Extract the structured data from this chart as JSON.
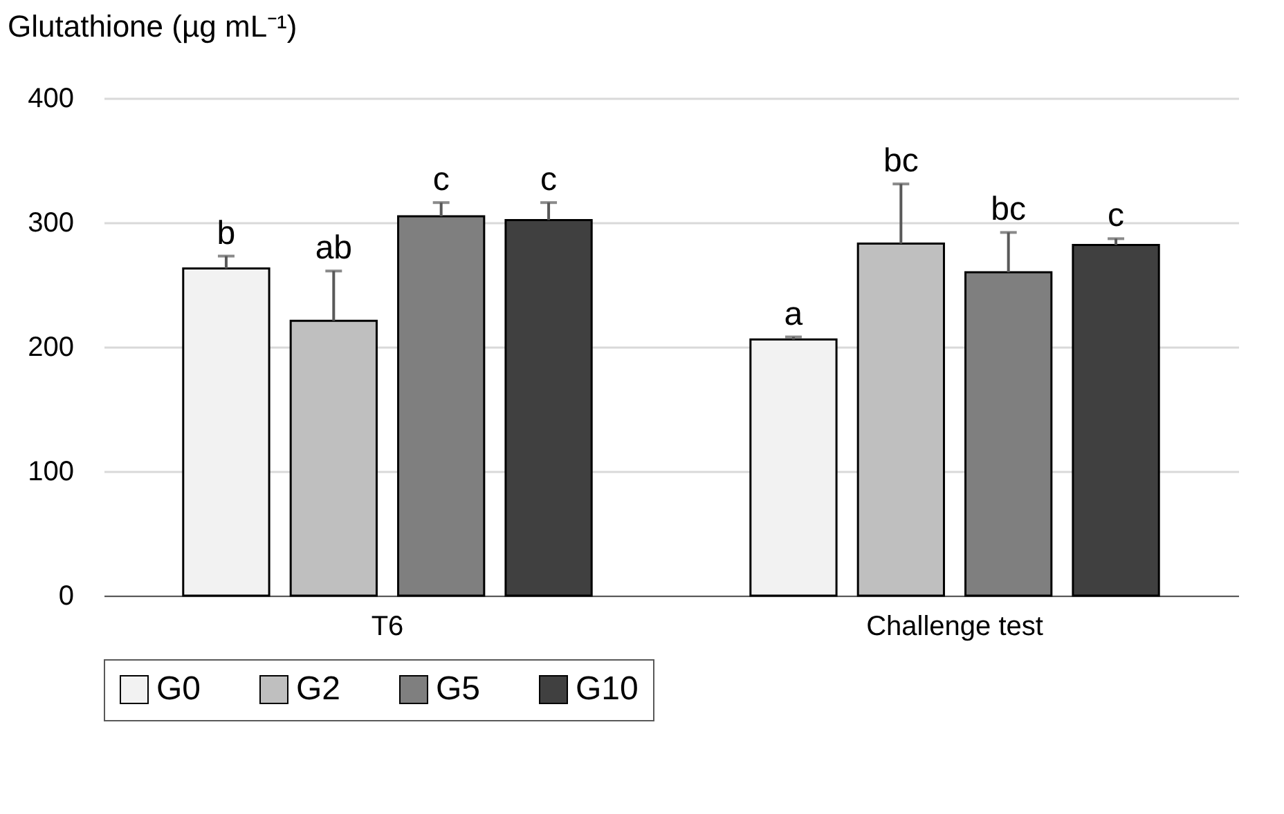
{
  "chart_data": {
    "type": "bar",
    "ylabel": "Glutathione (µg mL⁻¹)",
    "categories": [
      "T6",
      "Challenge test"
    ],
    "series": [
      {
        "name": "G0",
        "color": "#f2f2f2",
        "values": [
          263,
          206
        ],
        "errors": [
          [
            263,
            273
          ],
          [
            206,
            208
          ]
        ],
        "value_labels": [
          "b",
          "a"
        ]
      },
      {
        "name": "G2",
        "color": "#bfbfbf",
        "values": [
          221,
          283
        ],
        "errors": [
          [
            221,
            261
          ],
          [
            283,
            331
          ]
        ],
        "value_labels": [
          "ab",
          "bc"
        ]
      },
      {
        "name": "G5",
        "color": "#7f7f7f",
        "values": [
          305,
          260
        ],
        "errors": [
          [
            305,
            316
          ],
          [
            260,
            292
          ]
        ],
        "value_labels": [
          "c",
          "bc"
        ]
      },
      {
        "name": "G10",
        "color": "#404040",
        "values": [
          302,
          282
        ],
        "errors": [
          [
            302,
            316
          ],
          [
            282,
            287
          ]
        ],
        "value_labels": [
          "c",
          "c"
        ]
      }
    ],
    "ylim": [
      0,
      400
    ],
    "yticks": [
      0,
      100,
      200,
      300,
      400
    ],
    "grid": "y",
    "legend": "bottom"
  }
}
